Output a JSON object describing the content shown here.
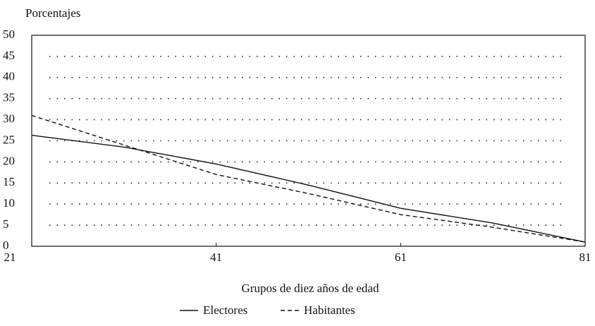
{
  "chart_data": {
    "type": "line",
    "title": "Porcentajes",
    "x_label": "Grupos de diez años de edad",
    "x": [
      21,
      31,
      41,
      51,
      61,
      71,
      81
    ],
    "series": [
      {
        "name": "Electores",
        "color": "#111111",
        "dash": "solid",
        "values": [
          26.3,
          23.5,
          19.5,
          14.5,
          9,
          5.5,
          1
        ]
      },
      {
        "name": "Habitantes",
        "color": "#111111",
        "dash": "dashed",
        "values": [
          31,
          24,
          17,
          12.5,
          7.5,
          4.5,
          1
        ]
      }
    ],
    "xlim": [
      21,
      81
    ],
    "xticks": [
      21,
      41,
      61,
      81
    ],
    "ylim": [
      0,
      50
    ],
    "yticks": [
      0,
      5,
      10,
      15,
      20,
      25,
      30,
      35,
      40,
      45,
      50
    ],
    "grid": true
  }
}
